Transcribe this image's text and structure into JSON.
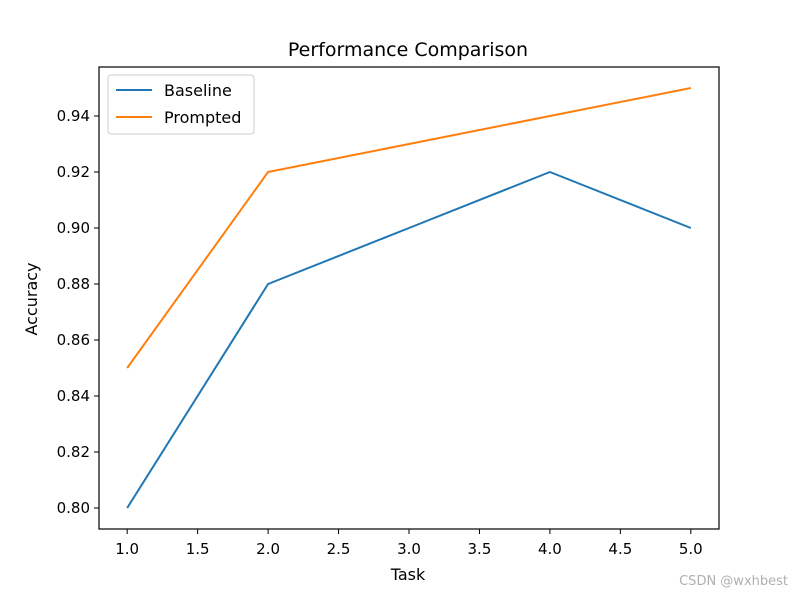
{
  "chart_data": {
    "type": "line",
    "title": "Performance Comparison",
    "xlabel": "Task",
    "ylabel": "Accuracy",
    "x": [
      1,
      2,
      3,
      4,
      5
    ],
    "series": [
      {
        "name": "Baseline",
        "values": [
          0.8,
          0.88,
          0.9,
          0.92,
          0.9
        ],
        "color": "#1f77b4"
      },
      {
        "name": "Prompted",
        "values": [
          0.85,
          0.92,
          0.93,
          0.94,
          0.95
        ],
        "color": "#ff7f0e"
      }
    ],
    "xlim": [
      0.8,
      5.2
    ],
    "ylim": [
      0.7925,
      0.9575
    ],
    "xticks": [
      1.0,
      1.5,
      2.0,
      2.5,
      3.0,
      3.5,
      4.0,
      4.5,
      5.0
    ],
    "xtick_labels": [
      "1.0",
      "1.5",
      "2.0",
      "2.5",
      "3.0",
      "3.5",
      "4.0",
      "4.5",
      "5.0"
    ],
    "yticks": [
      0.8,
      0.82,
      0.84,
      0.86,
      0.88,
      0.9,
      0.92,
      0.94
    ],
    "ytick_labels": [
      "0.80",
      "0.82",
      "0.84",
      "0.86",
      "0.88",
      "0.90",
      "0.92",
      "0.94"
    ],
    "grid": false,
    "legend_position": "upper-left"
  },
  "watermark": "CSDN @wxhbest"
}
